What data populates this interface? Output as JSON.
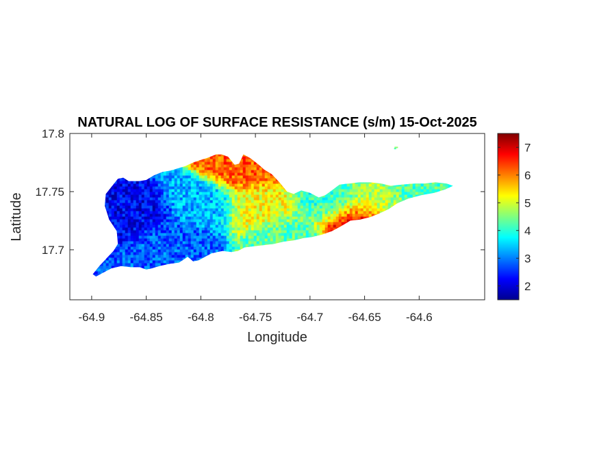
{
  "chart_data": {
    "type": "heatmap",
    "title": "NATURAL LOG OF SURFACE RESISTANCE (s/m) 15-Oct-2025",
    "xlabel": "Longitude",
    "ylabel": "Latitude",
    "xlim": [
      -64.92,
      -64.54
    ],
    "ylim": [
      17.657,
      17.8
    ],
    "xticks": [
      -64.9,
      -64.85,
      -64.8,
      -64.75,
      -64.7,
      -64.65,
      -64.6
    ],
    "xtick_labels": [
      "-64.9",
      "-64.85",
      "-64.8",
      "-64.75",
      "-64.7",
      "-64.65",
      "-64.6"
    ],
    "yticks": [
      17.7,
      17.75,
      17.8
    ],
    "ytick_labels": [
      "17.7",
      "17.75",
      "17.8"
    ],
    "colormap": "jet",
    "colorbar": {
      "range": [
        1.5,
        7.5
      ],
      "ticks": [
        2,
        3,
        4,
        5,
        6,
        7
      ],
      "tick_labels": [
        "2",
        "3",
        "4",
        "5",
        "6",
        "7"
      ]
    },
    "region_values": [
      {
        "lon": -64.86,
        "lat": 17.73,
        "value": 2.2
      },
      {
        "lon": -64.83,
        "lat": 17.71,
        "value": 2.8
      },
      {
        "lon": -64.8,
        "lat": 17.74,
        "value": 3.3
      },
      {
        "lon": -64.76,
        "lat": 17.77,
        "value": 6.2
      },
      {
        "lon": -64.75,
        "lat": 17.74,
        "value": 5.2
      },
      {
        "lon": -64.72,
        "lat": 17.71,
        "value": 4.3
      },
      {
        "lon": -64.68,
        "lat": 17.74,
        "value": 4.0
      },
      {
        "lon": -64.64,
        "lat": 17.74,
        "value": 4.8
      },
      {
        "lon": -64.6,
        "lat": 17.75,
        "value": 4.2
      },
      {
        "lon": -64.66,
        "lat": 17.726,
        "value": 7.2
      }
    ],
    "grid": false
  }
}
